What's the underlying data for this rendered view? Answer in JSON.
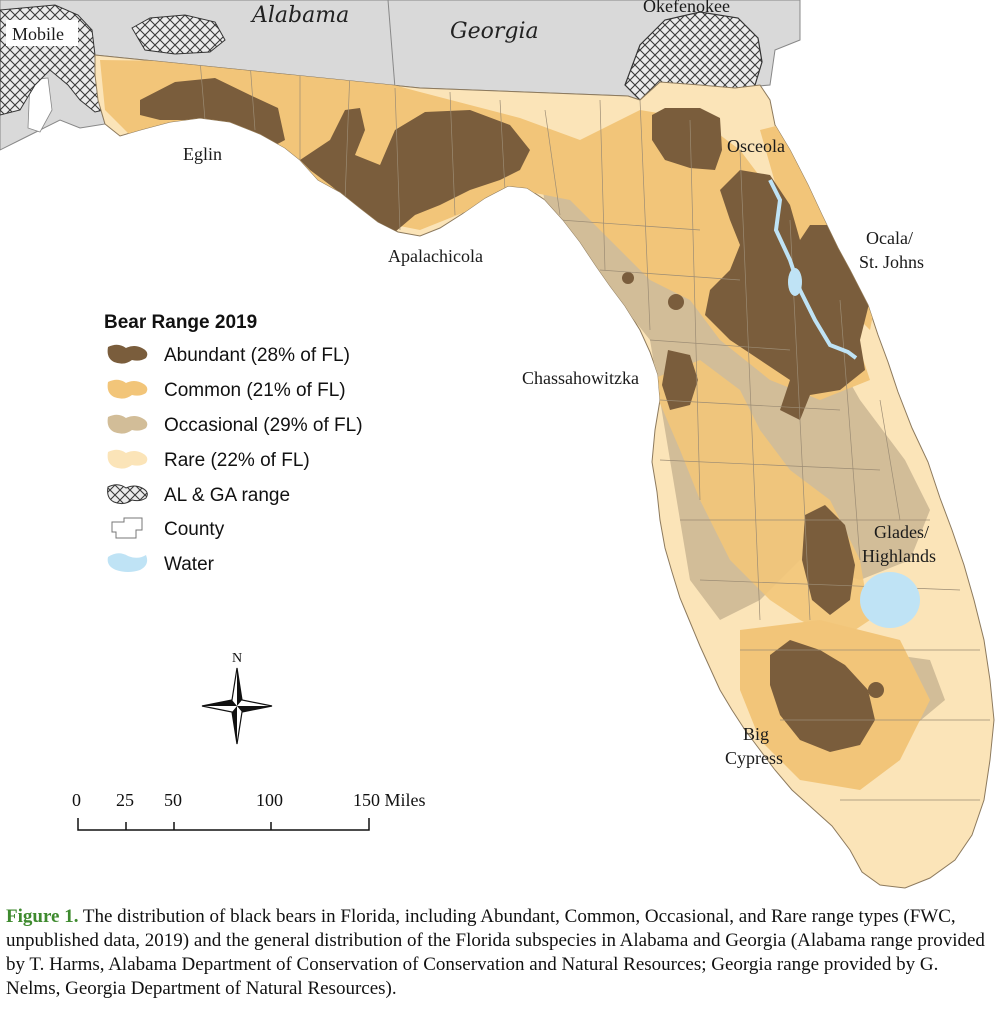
{
  "map": {
    "states": {
      "alabama": "Alabama",
      "georgia": "Georgia"
    },
    "places": {
      "mobile": "Mobile",
      "okefenokee": "Okefenokee",
      "eglin": "Eglin",
      "osceola": "Osceola",
      "ocala_line1": "Ocala/",
      "ocala_line2": "St. Johns",
      "apalachicola": "Apalachicola",
      "chassahowitzka": "Chassahowitzka",
      "glades_line1": "Glades/",
      "glades_line2": "Highlands",
      "bigcypress_line1": "Big",
      "bigcypress_line2": "Cypress"
    },
    "colors": {
      "abundant": "#7a5d3c",
      "common": "#f2c579",
      "occasional": "#d2bd98",
      "rare": "#fbe4b8",
      "water": "#bfe3f5",
      "outside_state": "#d9d9d9",
      "county_line": "#9c8c74"
    }
  },
  "legend": {
    "title": "Bear Range 2019",
    "items": [
      {
        "icon": "abundant-swatch-icon",
        "label": "Abundant (28% of FL)"
      },
      {
        "icon": "common-swatch-icon",
        "label": "Common (21% of FL)"
      },
      {
        "icon": "occasional-swatch-icon",
        "label": "Occasional (29% of FL)"
      },
      {
        "icon": "rare-swatch-icon",
        "label": "Rare (22% of FL)"
      },
      {
        "icon": "crosshatch-icon",
        "label": "AL & GA range"
      },
      {
        "icon": "county-outline-icon",
        "label": "County"
      },
      {
        "icon": "water-swatch-icon",
        "label": "Water"
      }
    ]
  },
  "north_arrow": {
    "label": "N"
  },
  "scale_bar": {
    "ticks": [
      "0",
      "25",
      "50",
      "100",
      "150 Miles"
    ]
  },
  "caption": {
    "figure_label": "Figure 1.",
    "text": " The distribution of black bears in Florida, including Abundant, Common, Occasional, and Rare range types (FWC, unpublished data, 2019) and the general distribution of the Florida subspecies in Alabama and Georgia (Alabama range provided by T. Harms, Alabama Department of Conservation of Conservation and Natural Resources; Georgia range provided by G. Nelms, Georgia Department of Natural Resources)."
  }
}
